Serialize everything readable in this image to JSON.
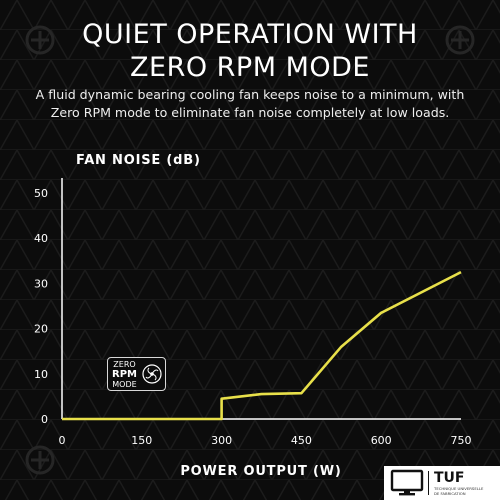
{
  "header": {
    "title_line1": "QUIET OPERATION WITH",
    "title_line2": "ZERO RPM MODE",
    "subtitle_line1": "A fluid dynamic bearing cooling fan keeps noise to a minimum, with",
    "subtitle_line2": "Zero RPM mode to eliminate fan noise completely at low loads."
  },
  "badge": {
    "line1": "ZERO",
    "line2": "RPM",
    "line3": "MODE",
    "icon": "fan-icon"
  },
  "brand": {
    "name": "TUF",
    "subline1": "TECHNIQUE UNIVERSELLE",
    "subline2": "DE FABRICATION",
    "icon": "monitor-icon"
  },
  "colors": {
    "background": "#0c0c0c",
    "line": "#e8e04a",
    "axis": "#ffffff"
  },
  "chart_data": {
    "type": "line",
    "title": "",
    "ylabel": "FAN NOISE (dB)",
    "xlabel": "POWER OUTPUT (W)",
    "xlim": [
      0,
      750
    ],
    "ylim": [
      0,
      50
    ],
    "xticks": [
      0,
      150,
      300,
      450,
      600,
      750
    ],
    "yticks": [
      0,
      10,
      20,
      30,
      40,
      50
    ],
    "grid": false,
    "series": [
      {
        "x": [
          0,
          300,
          300,
          375,
          450,
          525,
          600,
          750
        ],
        "y": [
          0,
          0,
          4.5,
          5.5,
          5.7,
          16,
          23.5,
          32.5
        ]
      }
    ]
  }
}
